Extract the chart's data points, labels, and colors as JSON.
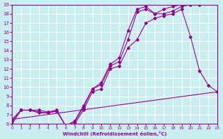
{
  "xlabel": "Windchill (Refroidissement éolien,°C)",
  "bg_color": "#c8eef0",
  "line_color": "#990099",
  "grid_color": "#ffffff",
  "xlim": [
    0,
    23
  ],
  "ylim": [
    6,
    19
  ],
  "xticks": [
    0,
    1,
    2,
    3,
    4,
    5,
    6,
    7,
    8,
    9,
    10,
    11,
    12,
    13,
    14,
    15,
    16,
    17,
    18,
    19,
    20,
    21,
    22,
    23
  ],
  "yticks": [
    6,
    7,
    8,
    9,
    10,
    11,
    12,
    13,
    14,
    15,
    16,
    17,
    18,
    19
  ],
  "line1_x": [
    0,
    1,
    2,
    3,
    4,
    5,
    6,
    7,
    8,
    9,
    10,
    11,
    12,
    13,
    14,
    15,
    16,
    17,
    18,
    19,
    20,
    21,
    22,
    23
  ],
  "line1_y": [
    6.0,
    7.5,
    7.5,
    7.5,
    7.3,
    7.5,
    5.8,
    6.0,
    7.5,
    9.5,
    9.8,
    12.0,
    12.3,
    14.3,
    15.2,
    17.0,
    17.5,
    17.8,
    18.0,
    18.5,
    15.5,
    11.8,
    10.2,
    9.5
  ],
  "line2_x": [
    0,
    1,
    2,
    3,
    4,
    5,
    6,
    7,
    8,
    9,
    10,
    11,
    12,
    13,
    14,
    15,
    16,
    17,
    18,
    19,
    20,
    21,
    22,
    23
  ],
  "line2_y": [
    6.3,
    7.5,
    7.5,
    7.3,
    7.2,
    7.4,
    5.8,
    6.2,
    7.8,
    9.8,
    10.3,
    12.3,
    12.8,
    15.2,
    18.2,
    18.5,
    18.0,
    18.0,
    18.3,
    18.8,
    19.0,
    19.0,
    19.1,
    19.2
  ],
  "line3_x": [
    0,
    1,
    2,
    3,
    4,
    5,
    6,
    7,
    8,
    9,
    10,
    11,
    12,
    13,
    14,
    15,
    16,
    17,
    18,
    19,
    20,
    21,
    22,
    23
  ],
  "line3_y": [
    6.5,
    7.5,
    7.5,
    7.2,
    7.2,
    7.4,
    5.8,
    6.3,
    8.0,
    9.8,
    10.5,
    12.5,
    13.2,
    16.2,
    18.5,
    18.8,
    18.0,
    18.5,
    18.8,
    19.0,
    19.2,
    19.2,
    19.2,
    19.2
  ],
  "line4_x": [
    0,
    23
  ],
  "line4_y": [
    6.5,
    9.5
  ]
}
